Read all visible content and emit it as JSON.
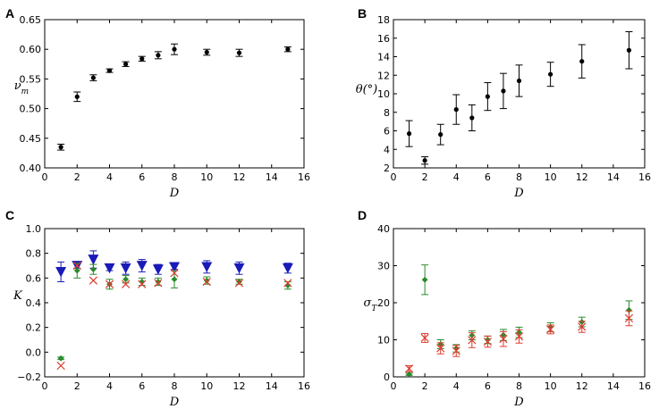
{
  "chart_data": [
    {
      "type": "scatter",
      "panel": "A",
      "xlabel": "D",
      "ylabel": "ν_m",
      "xlim": [
        0,
        16
      ],
      "ylim": [
        0.4,
        0.65
      ],
      "xticks": [
        "0",
        "2",
        "4",
        "6",
        "8",
        "10",
        "12",
        "14",
        "16"
      ],
      "yticks": [
        "0.40",
        "0.45",
        "0.50",
        "0.55",
        "0.60",
        "0.65"
      ],
      "series": [
        {
          "name": "mean",
          "color": "#000000",
          "marker": "dot",
          "x": [
            1,
            2,
            3,
            4,
            5,
            6,
            7,
            8,
            10,
            12,
            15
          ],
          "y": [
            0.435,
            0.52,
            0.552,
            0.564,
            0.575,
            0.584,
            0.59,
            0.6,
            0.595,
            0.594,
            0.6
          ],
          "err": [
            0.005,
            0.008,
            0.005,
            0.003,
            0.004,
            0.004,
            0.006,
            0.009,
            0.005,
            0.006,
            0.004
          ]
        }
      ]
    },
    {
      "type": "scatter",
      "panel": "B",
      "xlabel": "D",
      "ylabel": "θ(°)",
      "xlim": [
        0,
        16
      ],
      "ylim": [
        2,
        18
      ],
      "xticks": [
        "0",
        "2",
        "4",
        "6",
        "8",
        "10",
        "12",
        "14",
        "16"
      ],
      "yticks": [
        "2",
        "4",
        "6",
        "8",
        "10",
        "12",
        "14",
        "16",
        "18"
      ],
      "series": [
        {
          "name": "mean",
          "color": "#000000",
          "marker": "dot",
          "x": [
            1,
            2,
            3,
            4,
            5,
            6,
            7,
            8,
            10,
            12,
            15
          ],
          "y": [
            5.7,
            2.8,
            5.6,
            8.3,
            7.4,
            9.7,
            10.3,
            11.4,
            12.1,
            13.5,
            14.7
          ],
          "err": [
            1.4,
            0.4,
            1.1,
            1.6,
            1.4,
            1.5,
            1.9,
            1.7,
            1.3,
            1.8,
            2.0
          ]
        }
      ]
    },
    {
      "type": "scatter",
      "panel": "C",
      "xlabel": "D",
      "ylabel": "K",
      "xlim": [
        0,
        16
      ],
      "ylim": [
        -0.2,
        1.0
      ],
      "xticks": [
        "0",
        "2",
        "4",
        "6",
        "8",
        "10",
        "12",
        "14",
        "16"
      ],
      "yticks": [
        "−0.2",
        "0.0",
        "0.2",
        "0.4",
        "0.6",
        "0.8",
        "1.0"
      ],
      "series": [
        {
          "name": "blue",
          "color": "#1a1ab8",
          "marker": "triangle-down",
          "x": [
            1,
            2,
            3,
            4,
            5,
            6,
            7,
            8,
            10,
            12,
            15
          ],
          "y": [
            0.65,
            0.7,
            0.75,
            0.68,
            0.68,
            0.7,
            0.67,
            0.69,
            0.69,
            0.68,
            0.68
          ],
          "err": [
            0.08,
            0.02,
            0.07,
            0.02,
            0.05,
            0.05,
            0.04,
            0.02,
            0.05,
            0.05,
            0.04
          ]
        },
        {
          "name": "green",
          "color": "#2a8a2a",
          "marker": "diamond",
          "x": [
            1,
            2,
            3,
            4,
            5,
            6,
            7,
            8,
            10,
            12,
            15
          ],
          "y": [
            -0.05,
            0.66,
            0.67,
            0.55,
            0.59,
            0.57,
            0.57,
            0.59,
            0.58,
            0.57,
            0.54
          ],
          "err": [
            0.01,
            0.06,
            0.04,
            0.04,
            0.03,
            0.03,
            0.03,
            0.07,
            0.03,
            0.02,
            0.03
          ]
        },
        {
          "name": "red",
          "color": "#dd3b2f",
          "marker": "x",
          "x": [
            1,
            2,
            3,
            4,
            5,
            6,
            7,
            8,
            10,
            12,
            15
          ],
          "y": [
            -0.11,
            0.7,
            0.58,
            0.55,
            0.55,
            0.55,
            0.56,
            0.64,
            0.57,
            0.56,
            0.56
          ],
          "err": [
            0,
            0,
            0,
            0,
            0,
            0,
            0,
            0,
            0,
            0,
            0
          ]
        }
      ]
    },
    {
      "type": "scatter",
      "panel": "D",
      "xlabel": "D",
      "ylabel": "σ_T",
      "xlim": [
        0,
        16
      ],
      "ylim": [
        0,
        40
      ],
      "xticks": [
        "0",
        "2",
        "4",
        "6",
        "8",
        "10",
        "12",
        "14",
        "16"
      ],
      "yticks": [
        "0",
        "10",
        "20",
        "30",
        "40"
      ],
      "series": [
        {
          "name": "green",
          "color": "#2a8a2a",
          "marker": "diamond",
          "x": [
            1,
            2,
            3,
            4,
            5,
            6,
            7,
            8,
            10,
            12,
            15
          ],
          "y": [
            0.7,
            26.2,
            8.8,
            7.7,
            11.2,
            10.0,
            11.3,
            12.0,
            13.4,
            14.8,
            18.0
          ],
          "err": [
            0.3,
            4.0,
            1.2,
            1.0,
            1.2,
            1.0,
            1.5,
            1.4,
            1.2,
            1.3,
            2.5
          ]
        },
        {
          "name": "red",
          "color": "#dd3b2f",
          "marker": "x",
          "x": [
            1,
            2,
            3,
            4,
            5,
            6,
            7,
            8,
            10,
            12,
            15
          ],
          "y": [
            2.2,
            10.5,
            7.7,
            7.0,
            9.9,
            9.5,
            10.2,
            10.9,
            12.8,
            13.5,
            15.8
          ],
          "err": [
            0.8,
            1.2,
            1.5,
            1.5,
            2.0,
            1.5,
            2.0,
            1.8,
            1.2,
            1.5,
            2.0
          ]
        }
      ]
    }
  ]
}
